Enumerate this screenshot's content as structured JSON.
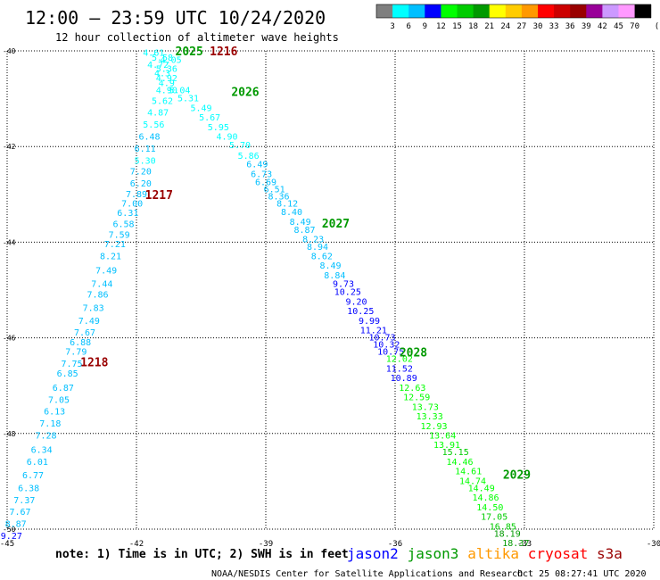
{
  "chart_data": {
    "type": "scatter",
    "title": "12:00 – 23:59 UTC 10/24/2020",
    "subtitle": "12 hour collection of altimeter wave heights",
    "xlim": [
      -45,
      -30
    ],
    "ylim": [
      -50,
      -40
    ],
    "x_ticks": [
      "-45",
      "-42",
      "-39",
      "-36",
      "-33",
      "-30"
    ],
    "y_ticks": [
      "-40",
      "-42",
      "-44",
      "-46",
      "-48",
      "-50"
    ],
    "grid": true,
    "colorbar": {
      "ticks": [
        "3",
        "6",
        "9",
        "12",
        "15",
        "18",
        "21",
        "24",
        "27",
        "30",
        "33",
        "36",
        "39",
        "42",
        "45",
        "70"
      ],
      "unit": "(ft)",
      "colors": [
        "#7f7f7f",
        "#00ffff",
        "#00bfff",
        "#0000ff",
        "#00ff00",
        "#00cc00",
        "#009900",
        "#ffff00",
        "#ffcc00",
        "#ff9900",
        "#ff0000",
        "#cc0000",
        "#990000",
        "#990099",
        "#cc99ff",
        "#ff99ff",
        "#000000"
      ]
    },
    "note": "note: 1) Time is in UTC; 2) SWH is in feet",
    "satellites": [
      {
        "name": "jason2",
        "color": "#0000ff"
      },
      {
        "name": "jason3",
        "color": "#009900"
      },
      {
        "name": "altika",
        "color": "#ff9900"
      },
      {
        "name": "cryosat",
        "color": "#ff0000"
      },
      {
        "name": "s3a",
        "color": "#990000"
      }
    ],
    "footer_left": "NOAA/NESDIS Center for Satellite Applications and Research",
    "footer_right": "Oct 25 08:27:41 UTC 2020",
    "track_labels": [
      {
        "text": "2025",
        "x": -41.1,
        "y": -40.0,
        "color": "#009900"
      },
      {
        "text": "1216",
        "x": -40.3,
        "y": -40.0,
        "color": "#990000"
      },
      {
        "text": "2026",
        "x": -39.8,
        "y": -40.85,
        "color": "#009900"
      },
      {
        "text": "1217",
        "x": -41.8,
        "y": -43.0,
        "color": "#990000"
      },
      {
        "text": "2027",
        "x": -37.7,
        "y": -43.6,
        "color": "#009900"
      },
      {
        "text": "1218",
        "x": -43.3,
        "y": -46.5,
        "color": "#990000"
      },
      {
        "text": "2028",
        "x": -35.9,
        "y": -46.3,
        "color": "#009900"
      },
      {
        "text": "2029",
        "x": -33.5,
        "y": -48.85,
        "color": "#009900"
      }
    ],
    "points": [
      {
        "x": -41.6,
        "y": -40.05,
        "v": "4.61"
      },
      {
        "x": -41.4,
        "y": -40.15,
        "v": "5.58"
      },
      {
        "x": -41.2,
        "y": -40.2,
        "v": "4.05"
      },
      {
        "x": -41.5,
        "y": -40.3,
        "v": "4.72"
      },
      {
        "x": -41.3,
        "y": -40.38,
        "v": "5.36"
      },
      {
        "x": -41.4,
        "y": -40.48,
        "v": "4.3"
      },
      {
        "x": -41.3,
        "y": -40.58,
        "v": "4.92"
      },
      {
        "x": -41.3,
        "y": -40.68,
        "v": "4.9"
      },
      {
        "x": -41.0,
        "y": -40.83,
        "v": "5.04"
      },
      {
        "x": -41.3,
        "y": -40.83,
        "v": "4.90"
      },
      {
        "x": -40.8,
        "y": -41.0,
        "v": "5.31"
      },
      {
        "x": -41.4,
        "y": -41.05,
        "v": "5.62"
      },
      {
        "x": -40.5,
        "y": -41.2,
        "v": "5.49"
      },
      {
        "x": -41.5,
        "y": -41.3,
        "v": "4.87"
      },
      {
        "x": -40.3,
        "y": -41.4,
        "v": "5.67"
      },
      {
        "x": -41.6,
        "y": -41.55,
        "v": "5.56"
      },
      {
        "x": -40.1,
        "y": -41.6,
        "v": "5.95"
      },
      {
        "x": -41.7,
        "y": -41.8,
        "v": "6.48"
      },
      {
        "x": -39.9,
        "y": -41.8,
        "v": "4.90"
      },
      {
        "x": -39.6,
        "y": -41.98,
        "v": "5.70"
      },
      {
        "x": -41.8,
        "y": -42.05,
        "v": "6.11"
      },
      {
        "x": -39.4,
        "y": -42.2,
        "v": "5.86"
      },
      {
        "x": -41.8,
        "y": -42.3,
        "v": "5.30"
      },
      {
        "x": -39.2,
        "y": -42.38,
        "v": "6.49"
      },
      {
        "x": -41.9,
        "y": -42.53,
        "v": "7.20"
      },
      {
        "x": -39.1,
        "y": -42.58,
        "v": "6.73"
      },
      {
        "x": -39.0,
        "y": -42.75,
        "v": "6.69"
      },
      {
        "x": -41.9,
        "y": -42.78,
        "v": "6.20"
      },
      {
        "x": -38.8,
        "y": -42.9,
        "v": "6.51"
      },
      {
        "x": -42.0,
        "y": -43.0,
        "v": "7.89"
      },
      {
        "x": -38.7,
        "y": -43.05,
        "v": "8.36"
      },
      {
        "x": -42.1,
        "y": -43.2,
        "v": "7.00"
      },
      {
        "x": -38.5,
        "y": -43.2,
        "v": "8.12"
      },
      {
        "x": -38.4,
        "y": -43.38,
        "v": "8.40"
      },
      {
        "x": -42.2,
        "y": -43.4,
        "v": "6.31"
      },
      {
        "x": -38.2,
        "y": -43.58,
        "v": "8.49"
      },
      {
        "x": -42.3,
        "y": -43.63,
        "v": "6.58"
      },
      {
        "x": -38.1,
        "y": -43.75,
        "v": "8.87"
      },
      {
        "x": -42.4,
        "y": -43.85,
        "v": "7.59"
      },
      {
        "x": -37.9,
        "y": -43.95,
        "v": "8.23"
      },
      {
        "x": -42.5,
        "y": -44.05,
        "v": "7.21"
      },
      {
        "x": -37.8,
        "y": -44.1,
        "v": "8.94"
      },
      {
        "x": -42.6,
        "y": -44.3,
        "v": "8.21"
      },
      {
        "x": -37.7,
        "y": -44.3,
        "v": "8.62"
      },
      {
        "x": -37.5,
        "y": -44.5,
        "v": "8.49"
      },
      {
        "x": -42.7,
        "y": -44.6,
        "v": "7.49"
      },
      {
        "x": -37.4,
        "y": -44.7,
        "v": "8.84"
      },
      {
        "x": -42.8,
        "y": -44.88,
        "v": "7.44"
      },
      {
        "x": -37.2,
        "y": -44.88,
        "v": "9.73"
      },
      {
        "x": -37.1,
        "y": -45.05,
        "v": "10.25"
      },
      {
        "x": -42.9,
        "y": -45.1,
        "v": "7.86"
      },
      {
        "x": -36.9,
        "y": -45.25,
        "v": "9.20"
      },
      {
        "x": -43.0,
        "y": -45.38,
        "v": "7.83"
      },
      {
        "x": -36.8,
        "y": -45.45,
        "v": "10.25"
      },
      {
        "x": -43.1,
        "y": -45.65,
        "v": "7.49"
      },
      {
        "x": -36.6,
        "y": -45.65,
        "v": "9.99"
      },
      {
        "x": -36.5,
        "y": -45.85,
        "v": "11.21"
      },
      {
        "x": -43.2,
        "y": -45.9,
        "v": "7.67"
      },
      {
        "x": -36.3,
        "y": -46.0,
        "v": "10.73"
      },
      {
        "x": -43.3,
        "y": -46.1,
        "v": "6.88"
      },
      {
        "x": -36.2,
        "y": -46.15,
        "v": "10.32"
      },
      {
        "x": -43.4,
        "y": -46.3,
        "v": "7.79"
      },
      {
        "x": -36.1,
        "y": -46.3,
        "v": "10.75"
      },
      {
        "x": -35.9,
        "y": -46.45,
        "v": "12.02"
      },
      {
        "x": -43.5,
        "y": -46.55,
        "v": "7.75"
      },
      {
        "x": -35.9,
        "y": -46.65,
        "v": "11.52"
      },
      {
        "x": -43.6,
        "y": -46.75,
        "v": "6.85"
      },
      {
        "x": -35.8,
        "y": -46.85,
        "v": "10.89"
      },
      {
        "x": -43.7,
        "y": -47.05,
        "v": "6.87"
      },
      {
        "x": -35.6,
        "y": -47.05,
        "v": "12.63"
      },
      {
        "x": -35.5,
        "y": -47.25,
        "v": "12.59"
      },
      {
        "x": -43.8,
        "y": -47.3,
        "v": "7.05"
      },
      {
        "x": -35.3,
        "y": -47.45,
        "v": "13.73"
      },
      {
        "x": -43.9,
        "y": -47.55,
        "v": "6.13"
      },
      {
        "x": -35.2,
        "y": -47.65,
        "v": "13.33"
      },
      {
        "x": -44.0,
        "y": -47.8,
        "v": "7.18"
      },
      {
        "x": -35.1,
        "y": -47.85,
        "v": "12.93"
      },
      {
        "x": -34.9,
        "y": -48.05,
        "v": "13.64"
      },
      {
        "x": -44.1,
        "y": -48.05,
        "v": "7.28"
      },
      {
        "x": -34.8,
        "y": -48.25,
        "v": "13.91"
      },
      {
        "x": -44.2,
        "y": -48.35,
        "v": "6.34"
      },
      {
        "x": -34.6,
        "y": -48.4,
        "v": "15.15"
      },
      {
        "x": -44.3,
        "y": -48.6,
        "v": "6.01"
      },
      {
        "x": -34.5,
        "y": -48.6,
        "v": "14.46"
      },
      {
        "x": -34.3,
        "y": -48.8,
        "v": "14.61"
      },
      {
        "x": -44.4,
        "y": -48.88,
        "v": "6.77"
      },
      {
        "x": -34.2,
        "y": -49.0,
        "v": "14.74"
      },
      {
        "x": -44.5,
        "y": -49.15,
        "v": "6.38"
      },
      {
        "x": -34.0,
        "y": -49.15,
        "v": "14.49"
      },
      {
        "x": -33.9,
        "y": -49.35,
        "v": "14.86"
      },
      {
        "x": -44.6,
        "y": -49.4,
        "v": "7.37"
      },
      {
        "x": -33.8,
        "y": -49.55,
        "v": "14.50"
      },
      {
        "x": -44.7,
        "y": -49.65,
        "v": "7.67"
      },
      {
        "x": -33.7,
        "y": -49.75,
        "v": "17.05"
      },
      {
        "x": -44.8,
        "y": -49.9,
        "v": "8.87"
      },
      {
        "x": -33.5,
        "y": -49.95,
        "v": "16.85"
      },
      {
        "x": -44.9,
        "y": -50.15,
        "v": "9.27"
      },
      {
        "x": -33.4,
        "y": -50.1,
        "v": "18.19"
      },
      {
        "x": -33.2,
        "y": -50.3,
        "v": "18.37"
      }
    ]
  }
}
